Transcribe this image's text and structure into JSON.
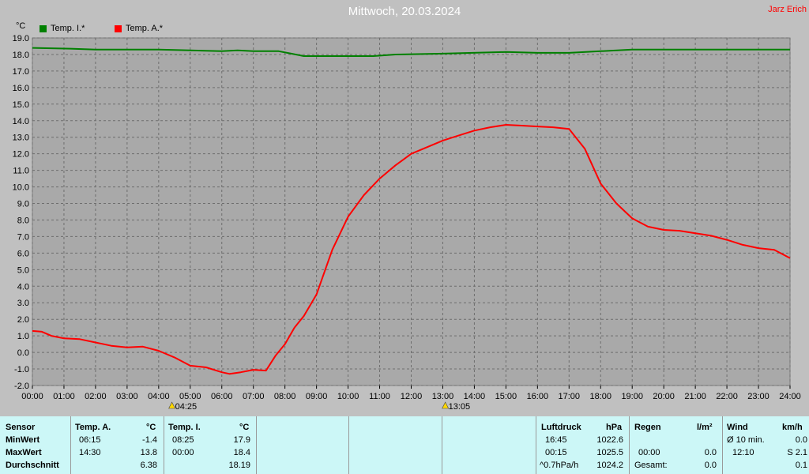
{
  "header": {
    "title": "Mittwoch, 20.03.2024",
    "author": "Jarz Erich",
    "unit": "°C"
  },
  "colors": {
    "inside": "#008000",
    "outside": "#ff0000",
    "plot_bg": "#a9a9a9",
    "panel_bg": "#ccf7f7"
  },
  "chart_data": {
    "type": "line",
    "ylabel": "°C",
    "ylim": [
      -2.0,
      19.0
    ],
    "xlim": [
      0,
      24
    ],
    "yticks": [
      "19.0",
      "18.0",
      "17.0",
      "16.0",
      "15.0",
      "14.0",
      "13.0",
      "12.0",
      "11.0",
      "10.0",
      "9.0",
      "8.0",
      "7.0",
      "6.0",
      "5.0",
      "4.0",
      "3.0",
      "2.0",
      "1.0",
      "0.0",
      "-1.0",
      "-2.0"
    ],
    "xticks": [
      "00:00",
      "01:00",
      "02:00",
      "03:00",
      "04:00",
      "05:00",
      "06:00",
      "07:00",
      "08:00",
      "09:00",
      "10:00",
      "11:00",
      "12:00",
      "13:00",
      "14:00",
      "15:00",
      "16:00",
      "17:00",
      "18:00",
      "19:00",
      "20:00",
      "21:00",
      "22:00",
      "23:00",
      "24:00"
    ],
    "grid": true,
    "legend_position": "top-left",
    "annotations": [
      {
        "type": "sunrise",
        "x": 4.42,
        "label": "04:25"
      },
      {
        "type": "sunset",
        "x": 13.08,
        "label": "13:05"
      }
    ],
    "series": [
      {
        "name": "Temp. I.*",
        "color": "#008000",
        "x": [
          0,
          1.2,
          2,
          3,
          4,
          5,
          6,
          6.5,
          7,
          7.8,
          8.2,
          8.6,
          9,
          10,
          10.8,
          11.5,
          13,
          15,
          16,
          17,
          18,
          19,
          20,
          21,
          22,
          23,
          24
        ],
        "y": [
          18.4,
          18.35,
          18.3,
          18.3,
          18.3,
          18.25,
          18.2,
          18.25,
          18.2,
          18.2,
          18.05,
          17.9,
          17.9,
          17.9,
          17.9,
          18.0,
          18.05,
          18.15,
          18.1,
          18.1,
          18.2,
          18.3,
          18.3,
          18.3,
          18.3,
          18.3,
          18.3
        ]
      },
      {
        "name": "Temp. A.*",
        "color": "#ff0000",
        "x": [
          0,
          0.3,
          0.6,
          1,
          1.5,
          2,
          2.5,
          3,
          3.5,
          4,
          4.5,
          5,
          5.5,
          6,
          6.25,
          6.6,
          7,
          7.4,
          7.7,
          8,
          8.3,
          8.6,
          9,
          9.5,
          10,
          10.5,
          11,
          11.5,
          12,
          12.5,
          13,
          13.5,
          14,
          14.5,
          15,
          15.5,
          16,
          16.5,
          17,
          17.5,
          18,
          18.5,
          19,
          19.5,
          20,
          20.5,
          21,
          21.5,
          22,
          22.5,
          23,
          23.5,
          24
        ],
        "y": [
          1.3,
          1.25,
          1.0,
          0.85,
          0.8,
          0.6,
          0.4,
          0.3,
          0.35,
          0.1,
          -0.3,
          -0.8,
          -0.9,
          -1.2,
          -1.3,
          -1.2,
          -1.05,
          -1.1,
          -0.2,
          0.5,
          1.5,
          2.2,
          3.5,
          6.2,
          8.2,
          9.5,
          10.5,
          11.3,
          12.0,
          12.4,
          12.8,
          13.1,
          13.4,
          13.6,
          13.75,
          13.7,
          13.65,
          13.6,
          13.5,
          12.3,
          10.2,
          9.0,
          8.1,
          7.6,
          7.4,
          7.35,
          7.2,
          7.05,
          6.8,
          6.5,
          6.3,
          6.2,
          5.7
        ]
      }
    ]
  },
  "stats": {
    "headers": {
      "sensor": "Sensor",
      "outside": "Temp. A.",
      "outside_unit": "°C",
      "inside": "Temp. I.",
      "inside_unit": "°C",
      "pressure": "Luftdruck",
      "pressure_unit": "hPa",
      "rain": "Regen",
      "rain_unit": "l/m²",
      "wind": "Wind",
      "wind_unit": "km/h"
    },
    "rows": [
      {
        "label": "MinWert",
        "out_time": "06:15",
        "out_val": "-1.4",
        "in_time": "08:25",
        "in_val": "17.9",
        "p_time": "16:45",
        "p_val": "1022.6",
        "r_time": "",
        "r_val": "",
        "w_time": "Ø 10 min.",
        "w_val": "0.0"
      },
      {
        "label": "MaxWert",
        "out_time": "14:30",
        "out_val": "13.8",
        "in_time": "00:00",
        "in_val": "18.4",
        "p_time": "00:15",
        "p_val": "1025.5",
        "r_time": "00:00",
        "r_val": "0.0",
        "w_time": "12:10",
        "w_val": "S 2.1"
      },
      {
        "label": "Durchschnitt",
        "out_time": "",
        "out_val": "6.38",
        "in_time": "",
        "in_val": "18.19",
        "p_time": "^0.7hPa/h",
        "p_val": "1024.2",
        "r_time": "Gesamt:",
        "r_val": "0.0",
        "w_time": "",
        "w_val": "0.1"
      }
    ]
  }
}
